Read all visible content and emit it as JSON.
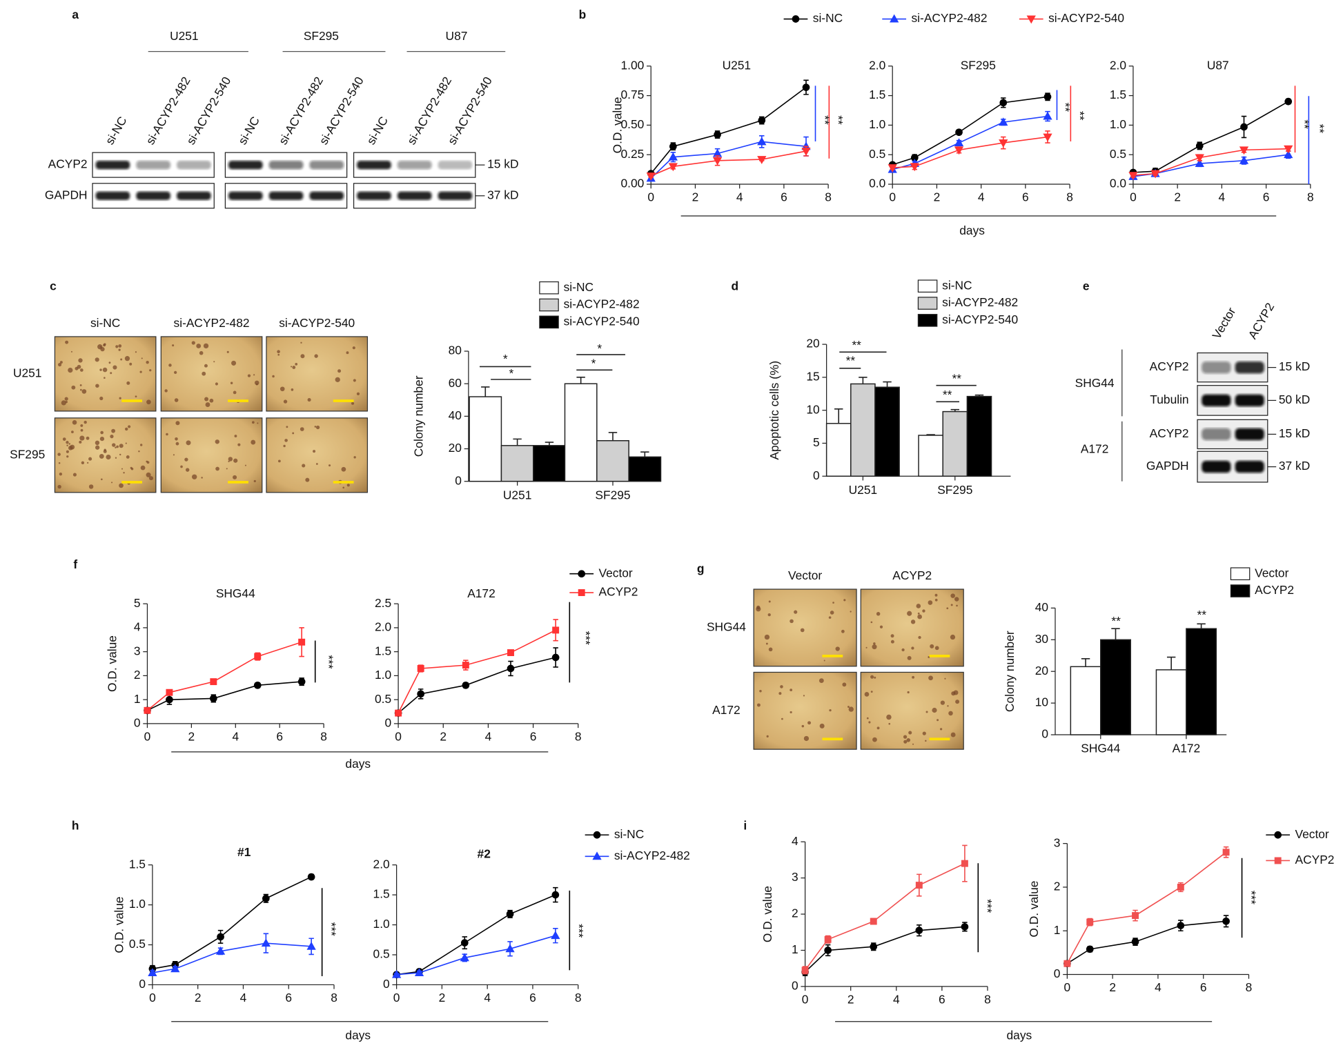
{
  "panel_labels": [
    "a",
    "b",
    "c",
    "d",
    "e",
    "f",
    "g",
    "h",
    "i"
  ],
  "blot_a": {
    "cell_lines": [
      "U251",
      "SF295",
      "U87"
    ],
    "lanes": [
      "si-NC",
      "si-ACYP2-482",
      "si-ACYP2-540",
      "si-NC",
      "si-ACYP2-482",
      "si-ACYP2-540",
      "si-NC",
      "si-ACYP2-482",
      "si-ACYP2-540"
    ],
    "rows": [
      {
        "protein": "ACYP2",
        "size": "15 kD"
      },
      {
        "protein": "GAPDH",
        "size": "37 kD"
      }
    ]
  },
  "blot_e": {
    "lanes": [
      "Vector",
      "ACYP2"
    ],
    "groups": [
      {
        "cell": "SHG44",
        "rows": [
          {
            "protein": "ACYP2",
            "size": "15 kD"
          },
          {
            "protein": "Tubulin",
            "size": "50 kD"
          }
        ]
      },
      {
        "cell": "A172",
        "rows": [
          {
            "protein": "ACYP2",
            "size": "15 kD"
          },
          {
            "protein": "GAPDH",
            "size": "37 kD"
          }
        ]
      }
    ]
  },
  "images_c": {
    "columns": [
      "si-NC",
      "si-ACYP2-482",
      "si-ACYP2-540"
    ],
    "rows": [
      "U251",
      "SF295"
    ]
  },
  "images_g": {
    "columns": [
      "Vector",
      "ACYP2"
    ],
    "rows": [
      "SHG44",
      "A172"
    ]
  },
  "chart_data": [
    {
      "type": "line",
      "title": "U251",
      "y_label": "O.D. value",
      "x_label": "days",
      "x": [
        0,
        1,
        3,
        5,
        7
      ],
      "xlim": [
        0,
        8
      ],
      "xticks": [
        0,
        2,
        4,
        6,
        8
      ],
      "ylim": [
        0,
        1
      ],
      "yticks": [
        {
          "value": 0,
          "label": "0.00"
        },
        0.25,
        {
          "value": 0.5,
          "label": "0.50"
        },
        0.75,
        {
          "value": 1,
          "label": "1.00"
        }
      ],
      "annotations": [
        "**",
        "**"
      ],
      "series": [
        {
          "name": "si-NC",
          "color": "#000000",
          "marker": "circle",
          "values": [
            0.09,
            0.32,
            0.42,
            0.54,
            0.82
          ],
          "errors": [
            0.01,
            0.03,
            0.03,
            0.03,
            0.06
          ]
        },
        {
          "name": "si-ACYP2-482",
          "color": "#1f3fff",
          "marker": "triangle",
          "values": [
            0.05,
            0.23,
            0.26,
            0.36,
            0.32
          ],
          "errors": [
            0.01,
            0.04,
            0.04,
            0.05,
            0.08
          ]
        },
        {
          "name": "si-ACYP2-540",
          "color": "#ff3333",
          "marker": "triangle-down",
          "values": [
            0.07,
            0.15,
            0.2,
            0.21,
            0.28
          ],
          "errors": [
            0.01,
            0.02,
            0.04,
            0.01,
            0.04
          ]
        }
      ]
    },
    {
      "type": "line",
      "title": "SF295",
      "x": [
        0,
        1,
        3,
        5,
        7
      ],
      "xlim": [
        0,
        8
      ],
      "xticks": [
        0,
        2,
        4,
        6,
        8
      ],
      "ylim": [
        0,
        2
      ],
      "yticks": [
        {
          "value": 0,
          "label": "0.0"
        },
        0.5,
        {
          "value": 1,
          "label": "1.0"
        },
        1.5,
        {
          "value": 2,
          "label": "2.0"
        }
      ],
      "annotations": [
        "**",
        "**"
      ],
      "series": [
        {
          "color": "#000000",
          "marker": "circle",
          "values": [
            0.33,
            0.45,
            0.88,
            1.38,
            1.48
          ],
          "errors": [
            0.03,
            0.05,
            0.04,
            0.08,
            0.06
          ]
        },
        {
          "color": "#1f3fff",
          "marker": "triangle",
          "values": [
            0.25,
            0.35,
            0.7,
            1.05,
            1.15
          ],
          "errors": [
            0.03,
            0.04,
            0.04,
            0.05,
            0.08
          ]
        },
        {
          "color": "#ff3333",
          "marker": "triangle-down",
          "values": [
            0.28,
            0.3,
            0.58,
            0.7,
            0.8
          ],
          "errors": [
            0.03,
            0.05,
            0.05,
            0.1,
            0.1
          ]
        }
      ]
    },
    {
      "type": "line",
      "title": "U87",
      "x": [
        0,
        1,
        3,
        5,
        7
      ],
      "xlim": [
        0,
        8
      ],
      "xticks": [
        0,
        2,
        4,
        6,
        8
      ],
      "ylim": [
        0,
        2
      ],
      "yticks": [
        {
          "value": 0,
          "label": "0.0"
        },
        0.5,
        {
          "value": 1,
          "label": "1.0"
        },
        1.5,
        {
          "value": 2,
          "label": "2.0"
        }
      ],
      "annotations": [
        "**",
        "**"
      ],
      "series": [
        {
          "color": "#000000",
          "marker": "circle",
          "values": [
            0.2,
            0.22,
            0.65,
            0.97,
            1.4
          ],
          "errors": [
            0.03,
            0.05,
            0.06,
            0.18,
            0.04
          ]
        },
        {
          "color": "#1f3fff",
          "marker": "triangle",
          "values": [
            0.13,
            0.18,
            0.35,
            0.4,
            0.5
          ],
          "errors": [
            0.03,
            0.03,
            0.05,
            0.06,
            0.06
          ]
        },
        {
          "color": "#ff3333",
          "marker": "triangle-down",
          "values": [
            0.15,
            0.18,
            0.45,
            0.58,
            0.6
          ],
          "errors": [
            0.03,
            0.03,
            0.05,
            0.04,
            0.04
          ]
        }
      ]
    },
    {
      "type": "bar",
      "y_label": "Colony number",
      "categories": [
        "U251",
        "SF295"
      ],
      "ylim": [
        0,
        80
      ],
      "yticks": [
        0,
        20,
        40,
        60,
        80
      ],
      "annotations": [
        "*",
        "*",
        "*",
        "*"
      ],
      "series": [
        {
          "name": "si-NC",
          "color": "#ffffff",
          "values": [
            52,
            60
          ],
          "errors": [
            6,
            4
          ]
        },
        {
          "name": "si-ACYP2-482",
          "color": "#d0d0d0",
          "values": [
            22,
            25
          ],
          "errors": [
            4,
            5
          ]
        },
        {
          "name": "si-ACYP2-540",
          "color": "#000000",
          "values": [
            22,
            15
          ],
          "errors": [
            2,
            3
          ]
        }
      ]
    },
    {
      "type": "bar",
      "y_label": "Apoptotic cells (%)",
      "categories": [
        "U251",
        "SF295"
      ],
      "ylim": [
        0,
        20
      ],
      "yticks": [
        0,
        5,
        10,
        15,
        20
      ],
      "annotations": [
        "**",
        "**",
        "**",
        "**"
      ],
      "series": [
        {
          "name": "si-NC",
          "color": "#ffffff",
          "values": [
            8,
            6.2
          ],
          "errors": [
            2.2,
            0.1
          ]
        },
        {
          "name": "si-ACYP2-482",
          "color": "#d0d0d0",
          "values": [
            14,
            9.8
          ],
          "errors": [
            1,
            0.3
          ]
        },
        {
          "name": "si-ACYP2-540",
          "color": "#000000",
          "values": [
            13.5,
            12.1
          ],
          "errors": [
            0.8,
            0.2
          ]
        }
      ]
    },
    {
      "type": "line",
      "title": "SHG44",
      "y_label": "O.D. value",
      "x_label": "days",
      "x": [
        0,
        1,
        3,
        5,
        7
      ],
      "xlim": [
        0,
        8
      ],
      "xticks": [
        0,
        2,
        4,
        6,
        8
      ],
      "ylim": [
        0,
        5
      ],
      "yticks": [
        0,
        1,
        2,
        3,
        4,
        5
      ],
      "annotations": [
        "***"
      ],
      "series": [
        {
          "name": "Vector",
          "color": "#000000",
          "marker": "circle",
          "values": [
            0.55,
            1,
            1.05,
            1.6,
            1.75
          ],
          "errors": [
            0.1,
            0.2,
            0.15,
            0.1,
            0.15
          ]
        },
        {
          "name": "ACYP2",
          "color": "#ff3333",
          "marker": "square",
          "values": [
            0.55,
            1.3,
            1.75,
            2.8,
            3.4
          ],
          "errors": [
            0.1,
            0.1,
            0.1,
            0.15,
            0.6
          ]
        }
      ]
    },
    {
      "type": "line",
      "title": "A172",
      "x": [
        0,
        1,
        3,
        5,
        7
      ],
      "xlim": [
        0,
        8
      ],
      "xticks": [
        0,
        2,
        4,
        6,
        8
      ],
      "ylim": [
        0,
        2.5
      ],
      "yticks": [
        0,
        0.5,
        {
          "value": 1,
          "label": "1.0"
        },
        1.5,
        {
          "value": 2,
          "label": "2.0"
        },
        2.5
      ],
      "annotations": [
        "***"
      ],
      "series": [
        {
          "color": "#000000",
          "marker": "circle",
          "values": [
            0.22,
            0.62,
            0.8,
            1.15,
            1.38
          ],
          "errors": [
            0.05,
            0.1,
            0.05,
            0.15,
            0.2
          ]
        },
        {
          "color": "#ff3333",
          "marker": "square",
          "values": [
            0.22,
            1.15,
            1.22,
            1.48,
            1.95
          ],
          "errors": [
            0.05,
            0.07,
            0.1,
            0.04,
            0.22
          ]
        }
      ]
    },
    {
      "type": "bar",
      "y_label": "Colony number",
      "categories": [
        "SHG44",
        "A172"
      ],
      "ylim": [
        0,
        40
      ],
      "yticks": [
        0,
        10,
        20,
        30,
        40
      ],
      "annotations": [
        "**",
        "**"
      ],
      "series": [
        {
          "name": "Vector",
          "color": "#ffffff",
          "values": [
            21.5,
            20.5
          ],
          "errors": [
            2.5,
            4
          ]
        },
        {
          "name": "ACYP2",
          "color": "#000000",
          "values": [
            30,
            33.5
          ],
          "errors": [
            3.5,
            1.5
          ]
        }
      ]
    },
    {
      "type": "line",
      "title": "#1",
      "y_label": "O.D. value",
      "x_label": "days",
      "x": [
        0,
        1,
        3,
        5,
        7
      ],
      "xlim": [
        0,
        8
      ],
      "xticks": [
        0,
        2,
        4,
        6,
        8
      ],
      "ylim": [
        0,
        1.5
      ],
      "yticks": [
        0,
        0.5,
        {
          "value": 1,
          "label": "1.0"
        },
        1.5
      ],
      "annotations": [
        "***"
      ],
      "series": [
        {
          "name": "si-NC",
          "color": "#000000",
          "marker": "circle",
          "values": [
            0.2,
            0.25,
            0.6,
            1.08,
            1.35
          ],
          "errors": [
            0.04,
            0.04,
            0.08,
            0.05,
            0.03
          ]
        },
        {
          "name": "si-ACYP2-482",
          "color": "#1f3fff",
          "marker": "triangle",
          "values": [
            0.15,
            0.2,
            0.42,
            0.52,
            0.48
          ],
          "errors": [
            0.03,
            0.03,
            0.04,
            0.12,
            0.1
          ]
        }
      ]
    },
    {
      "type": "line",
      "title": "#2",
      "x": [
        0,
        1,
        3,
        5,
        7
      ],
      "xlim": [
        0,
        8
      ],
      "xticks": [
        0,
        2,
        4,
        6,
        8
      ],
      "ylim": [
        0,
        2
      ],
      "yticks": [
        0,
        0.5,
        {
          "value": 1,
          "label": "1.0"
        },
        1.5,
        {
          "value": 2,
          "label": "2.0"
        }
      ],
      "annotations": [
        "***"
      ],
      "series": [
        {
          "color": "#000000",
          "marker": "circle",
          "values": [
            0.17,
            0.22,
            0.7,
            1.18,
            1.5
          ],
          "errors": [
            0.02,
            0.03,
            0.1,
            0.06,
            0.12
          ]
        },
        {
          "color": "#1f3fff",
          "marker": "triangle",
          "values": [
            0.17,
            0.2,
            0.45,
            0.6,
            0.82
          ],
          "errors": [
            0.02,
            0.03,
            0.06,
            0.12,
            0.12
          ]
        }
      ]
    },
    {
      "type": "line",
      "y_label": "O.D. value",
      "x_label": "days",
      "x": [
        0,
        1,
        3,
        5,
        7
      ],
      "xlim": [
        0,
        8
      ],
      "xticks": [
        0,
        2,
        4,
        6,
        8
      ],
      "ylim": [
        0,
        4
      ],
      "yticks": [
        0,
        1,
        2,
        3,
        4
      ],
      "annotations": [
        "***"
      ],
      "series": [
        {
          "name": "Vector",
          "color": "#000000",
          "marker": "circle",
          "values": [
            0.4,
            1,
            1.1,
            1.55,
            1.65
          ],
          "errors": [
            0.1,
            0.15,
            0.1,
            0.15,
            0.12
          ]
        },
        {
          "name": "ACYP2",
          "color": "#f05050",
          "marker": "square",
          "values": [
            0.45,
            1.3,
            1.8,
            2.8,
            3.4
          ],
          "errors": [
            0.1,
            0.1,
            0.08,
            0.3,
            0.5
          ]
        }
      ]
    },
    {
      "type": "line",
      "y_label": "O.D. value",
      "x": [
        0,
        1,
        3,
        5,
        7
      ],
      "xlim": [
        0,
        8
      ],
      "xticks": [
        0,
        2,
        4,
        6,
        8
      ],
      "ylim": [
        0,
        3
      ],
      "yticks": [
        0,
        1,
        2,
        3
      ],
      "annotations": [
        "***"
      ],
      "series": [
        {
          "color": "#000000",
          "marker": "circle",
          "values": [
            0.25,
            0.58,
            0.75,
            1.12,
            1.22
          ],
          "errors": [
            0.04,
            0.06,
            0.08,
            0.12,
            0.13
          ]
        },
        {
          "color": "#f05050",
          "marker": "square",
          "values": [
            0.25,
            1.2,
            1.35,
            2,
            2.8
          ],
          "errors": [
            0.04,
            0.08,
            0.12,
            0.1,
            0.12
          ]
        }
      ]
    }
  ]
}
